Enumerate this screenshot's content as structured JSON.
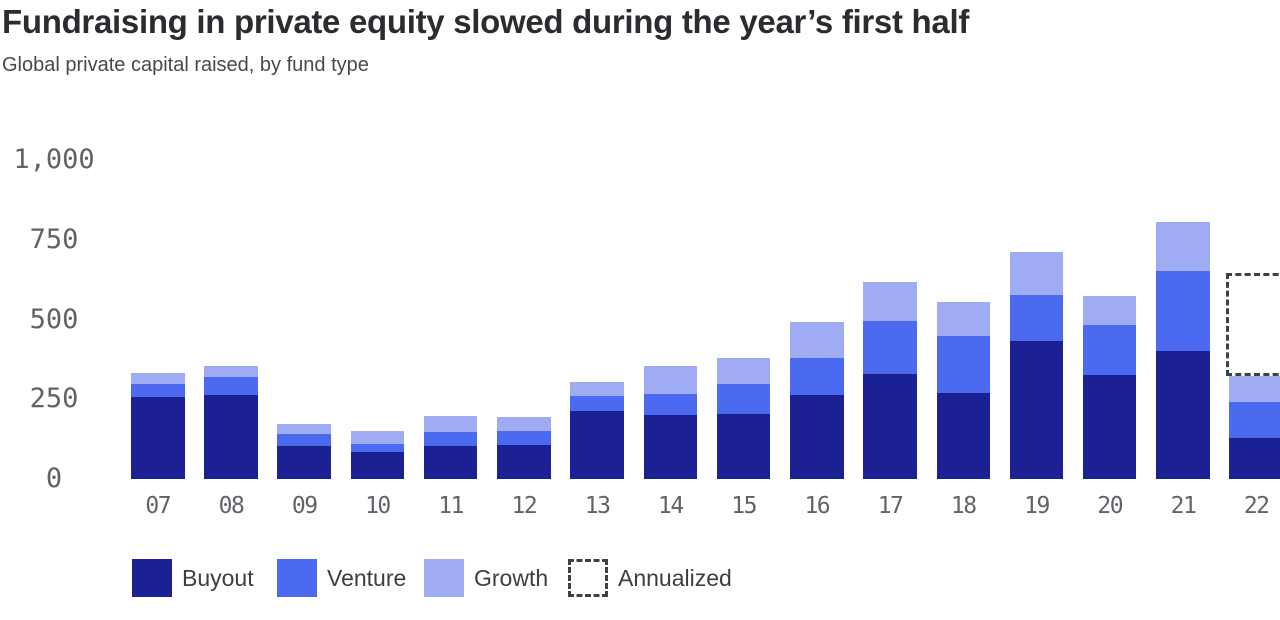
{
  "header": {
    "title": "Fundraising in private equity slowed during the year’s first half",
    "subtitle": "Global private capital raised, by fund type"
  },
  "chart_data": {
    "type": "bar",
    "stacked": true,
    "title": "Fundraising in private equity slowed during the year’s first half",
    "subtitle": "Global private capital raised, by fund type",
    "categories": [
      "07",
      "08",
      "09",
      "10",
      "11",
      "12",
      "13",
      "14",
      "15",
      "16",
      "17",
      "18",
      "19",
      "20",
      "21",
      "22"
    ],
    "series": [
      {
        "name": "Buyout",
        "color": "#1b2093",
        "values": [
          256,
          264,
          104,
          86,
          102,
          108,
          214,
          202,
          204,
          263,
          328,
          270,
          434,
          327,
          402,
          129
        ]
      },
      {
        "name": "Venture",
        "color": "#4b6aef",
        "values": [
          41,
          56,
          37,
          23,
          44,
          44,
          45,
          65,
          94,
          115,
          166,
          178,
          143,
          157,
          251,
          112
        ]
      },
      {
        "name": "Growth",
        "color": "#9fabf2",
        "values": [
          36,
          34,
          31,
          43,
          53,
          42,
          45,
          87,
          81,
          115,
          124,
          107,
          136,
          90,
          154,
          83
        ]
      }
    ],
    "annualized": {
      "label": "Annualized",
      "category": "22",
      "total": 645,
      "border_color": "#414141"
    },
    "y_ticks": [
      {
        "label": "0",
        "value": 0
      },
      {
        "label": "250",
        "value": 250
      },
      {
        "label": "500",
        "value": 500
      },
      {
        "label": "750",
        "value": 750
      },
      {
        "label": "1,000",
        "value": 1000
      }
    ],
    "ylim": [
      0,
      1000
    ],
    "grid": false,
    "legend_position": "bottom",
    "legend": [
      "Buyout",
      "Venture",
      "Growth",
      "Annualized"
    ]
  },
  "colors": {
    "background": "#ffffff",
    "title_text": "#2a2c2f",
    "subtitle_text": "#46494d",
    "axis_text": "#606368",
    "legend_text": "#3c3e40",
    "annualized_dash": "#414141"
  }
}
